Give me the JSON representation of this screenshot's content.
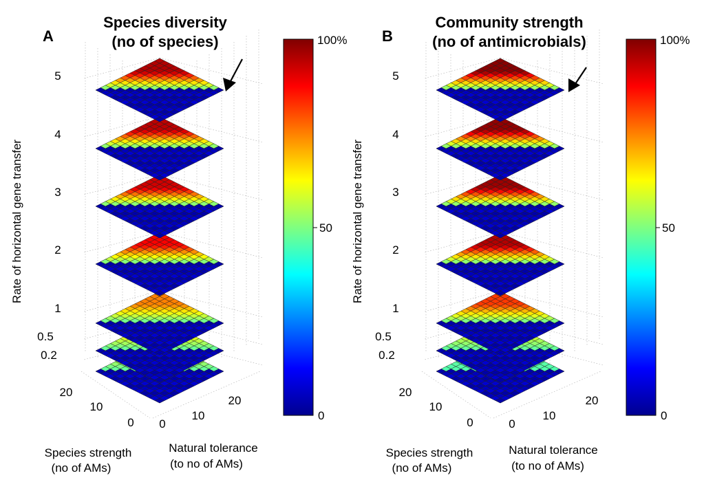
{
  "chart_data": [
    {
      "type": "heatmap",
      "panel_label": "A",
      "title": "Species diversity",
      "subtitle": "(no of species)",
      "zlabel": "Rate of horizontal gene transfer",
      "zticks": [
        "0.2",
        "0.5",
        "1",
        "2",
        "3",
        "4",
        "5"
      ],
      "ylabel_line1": "Species strength",
      "ylabel_line2": "(no of AMs)",
      "yticks": [
        "0",
        "10",
        "20"
      ],
      "ylim": [
        0,
        25
      ],
      "xlabel_line1": "Natural tolerance",
      "xlabel_line2": "(to no of AMs)",
      "xticks": [
        "0",
        "10",
        "20"
      ],
      "xlim": [
        0,
        25
      ],
      "colorbar": {
        "min_label": "0",
        "mid_label": "50",
        "max_label": "100%",
        "range": [
          0,
          100
        ]
      },
      "layers": [
        {
          "hgt": "0.2",
          "peak": 62
        },
        {
          "hgt": "0.5",
          "peak": 66
        },
        {
          "hgt": "1",
          "peak": 75
        },
        {
          "hgt": "2",
          "peak": 88
        },
        {
          "hgt": "3",
          "peak": 92
        },
        {
          "hgt": "4",
          "peak": 94
        },
        {
          "hgt": "5",
          "peak": 95
        }
      ],
      "arrow_target_layer": "5"
    },
    {
      "type": "heatmap",
      "panel_label": "B",
      "title": "Community strength",
      "subtitle": "(no of antimicrobials)",
      "zlabel": "Rate of horizontal gene transfer",
      "zticks": [
        "0.2",
        "0.5",
        "1",
        "2",
        "3",
        "4",
        "5"
      ],
      "ylabel_line1": "Species strength",
      "ylabel_line2": "(no of AMs)",
      "yticks": [
        "0",
        "10",
        "20"
      ],
      "ylim": [
        0,
        25
      ],
      "xlabel_line1": "Natural tolerance",
      "xlabel_line2": "(to no of AMs)",
      "xticks": [
        "0",
        "10",
        "20"
      ],
      "xlim": [
        0,
        25
      ],
      "colorbar": {
        "min_label": "0",
        "mid_label": "50",
        "max_label": "100%",
        "range": [
          0,
          100
        ]
      },
      "layers": [
        {
          "hgt": "0.2",
          "peak": 48
        },
        {
          "hgt": "0.5",
          "peak": 62
        },
        {
          "hgt": "1",
          "peak": 82
        },
        {
          "hgt": "2",
          "peak": 95
        },
        {
          "hgt": "3",
          "peak": 97
        },
        {
          "hgt": "4",
          "peak": 98
        },
        {
          "hgt": "5",
          "peak": 99
        }
      ],
      "arrow_target_layer": "5"
    }
  ]
}
